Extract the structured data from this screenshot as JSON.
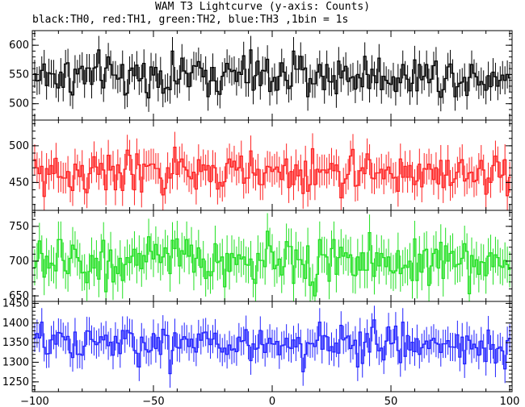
{
  "chart_data": {
    "type": "line",
    "title": "WAM T3 Lightcurve (y-axis: Counts)",
    "subtitle": "black:TH0, red:TH1, green:TH2, blue:TH3 ,1bin = 1s",
    "xlabel": "",
    "ylabel": "",
    "xlim": [
      -101,
      101
    ],
    "x_ticks": [
      -100,
      -50,
      0,
      50,
      100
    ],
    "x_tick_labels": [
      "−100",
      "−50",
      "0",
      "50",
      "100"
    ],
    "bin_width": 1,
    "panels": [
      {
        "name": "TH0",
        "color": "#000000",
        "ylim": [
          472,
          625
        ],
        "y_ticks": [
          500,
          550,
          600
        ],
        "y_tick_labels": [
          "500",
          "550",
          "600"
        ],
        "mean": 548,
        "error": 24,
        "amplitude": 22,
        "values": []
      },
      {
        "name": "TH1",
        "color": "#ff2020",
        "ylim": [
          412,
          535
        ],
        "y_ticks": [
          450,
          500
        ],
        "y_tick_labels": [
          "450",
          "500"
        ],
        "mean": 463,
        "error": 21,
        "amplitude": 18,
        "values": []
      },
      {
        "name": "TH2",
        "color": "#20e020",
        "ylim": [
          642,
          773
        ],
        "y_ticks": [
          650,
          700,
          750
        ],
        "y_tick_labels": [
          "650",
          "700",
          "750"
        ],
        "mean": 699,
        "error": 26,
        "amplitude": 22,
        "values": []
      },
      {
        "name": "TH3",
        "color": "#2020ff",
        "ylim": [
          1225,
          1455
        ],
        "y_ticks": [
          1250,
          1300,
          1350,
          1400,
          1450
        ],
        "y_tick_labels": [
          "1250",
          "1300",
          "1350",
          "1400",
          "1450"
        ],
        "mean": 1346,
        "error": 36,
        "amplitude": 32,
        "values": []
      }
    ]
  }
}
